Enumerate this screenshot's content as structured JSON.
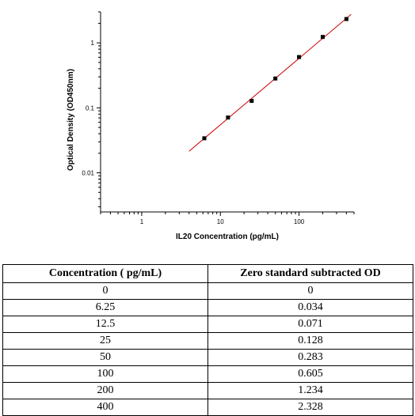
{
  "chart_data": {
    "type": "scatter",
    "xlabel": "IL20 Concentration (pg/mL)",
    "ylabel": "Optical Density (OD450nm)",
    "x_scale": "log",
    "y_scale": "log",
    "xlim": [
      0.3,
      500
    ],
    "ylim": [
      0.0025,
      3
    ],
    "x_ticks": [
      1,
      10,
      100
    ],
    "x_tick_labels": [
      "1",
      "10",
      "100"
    ],
    "y_ticks": [
      0.01,
      0.1,
      1
    ],
    "y_tick_labels": [
      "0.01",
      "0.1",
      "1"
    ],
    "grid": false,
    "legend": "none",
    "series": [
      {
        "points": [
          {
            "x": 6.25,
            "y": 0.034
          },
          {
            "x": 12.5,
            "y": 0.071
          },
          {
            "x": 25,
            "y": 0.128
          },
          {
            "x": 50,
            "y": 0.283
          },
          {
            "x": 100,
            "y": 0.605
          },
          {
            "x": 200,
            "y": 1.234
          },
          {
            "x": 400,
            "y": 2.328
          }
        ],
        "color": "#000000"
      }
    ],
    "fit_line": {
      "x_range": [
        4,
        460
      ],
      "y_range": [
        0.0215,
        2.75
      ],
      "color": "#cc0000"
    }
  },
  "table": {
    "headers": [
      "Concentration ( pg/mL)",
      "Zero standard subtracted OD"
    ],
    "rows": [
      [
        "0",
        "0"
      ],
      [
        "6.25",
        "0.034"
      ],
      [
        "12.5",
        "0.071"
      ],
      [
        "25",
        "0.128"
      ],
      [
        "50",
        "0.283"
      ],
      [
        "100",
        "0.605"
      ],
      [
        "200",
        "1.234"
      ],
      [
        "400",
        "2.328"
      ]
    ]
  }
}
